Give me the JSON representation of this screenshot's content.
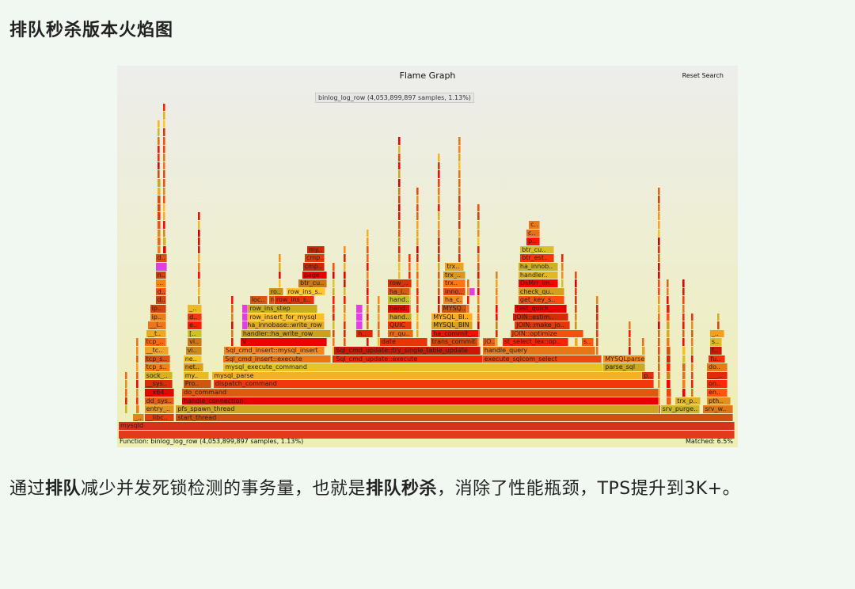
{
  "heading": "排队秒杀版本火焰图",
  "flamegraph": {
    "title": "Flame Graph",
    "reset_search": "Reset Search",
    "function_status": "Function: binlog_log_row (4,053,899,897 samples, 1.13%)",
    "tooltip": "binlog_log_row (4,053,899,897 samples, 1.13%)",
    "matched": "Matched: 6.5%",
    "highlight_color": "#e040e0",
    "frames_note_units": "level, start % of samples, width % of samples, label",
    "frames": [
      [
        0,
        0,
        100,
        ""
      ],
      [
        1,
        0,
        100,
        "mysqld"
      ],
      [
        2,
        2.3,
        1.8,
        "_.."
      ],
      [
        2,
        4.2,
        4.8,
        "__libc.."
      ],
      [
        2,
        9.3,
        90.5,
        "start_thread"
      ],
      [
        3,
        4.2,
        4.8,
        "entry_.."
      ],
      [
        3,
        9.3,
        78.4,
        "pfs_spawn_thread"
      ],
      [
        3,
        88.0,
        6.4,
        "srv_purge.."
      ],
      [
        3,
        94.9,
        4.8,
        "srv_w.."
      ],
      [
        4,
        4.2,
        4.8,
        "dd_sys.."
      ],
      [
        4,
        10.3,
        77.4,
        "handle_connection"
      ],
      [
        4,
        90.4,
        4.1,
        "trx_p.."
      ],
      [
        4,
        95.5,
        3.8,
        "pth.."
      ],
      [
        5,
        4.2,
        4.8,
        "__x64.."
      ],
      [
        5,
        10.3,
        77.4,
        "do_command"
      ],
      [
        5,
        95.5,
        3.3,
        "en.."
      ],
      [
        6,
        4.2,
        4.5,
        "__sys.."
      ],
      [
        6,
        10.5,
        4.6,
        "Pro.."
      ],
      [
        6,
        15.4,
        71.5,
        "dispatch_command"
      ],
      [
        6,
        95.5,
        3.3,
        "on.."
      ],
      [
        7,
        4.2,
        4.5,
        "sock_.."
      ],
      [
        7,
        10.5,
        4.2,
        "my.."
      ],
      [
        7,
        15.2,
        69.7,
        "mysql_parse"
      ],
      [
        7,
        85.0,
        1.9,
        "p.."
      ],
      [
        7,
        95.5,
        3.3,
        "___.."
      ],
      [
        8,
        4.2,
        4.1,
        "tcp_s.."
      ],
      [
        8,
        10.5,
        3.3,
        "net.."
      ],
      [
        8,
        17.0,
        61.7,
        "mysql_execute_command"
      ],
      [
        8,
        78.7,
        6.8,
        "parse_sql"
      ],
      [
        8,
        95.5,
        3.3,
        "do.."
      ],
      [
        9,
        4.2,
        4.1,
        "tcp_s.."
      ],
      [
        9,
        10.5,
        3.0,
        "ne.."
      ],
      [
        9,
        17.0,
        17.5,
        "Sql_cmd_insert::execute"
      ],
      [
        9,
        35.0,
        24.2,
        "Sql_cmd_update::execute"
      ],
      [
        9,
        59.1,
        19.3,
        "execute_sqlcom_select"
      ],
      [
        9,
        78.7,
        6.8,
        "MYSQLparse"
      ],
      [
        9,
        95.8,
        2.6,
        "fu.."
      ],
      [
        10,
        4.2,
        3.9,
        "__tc.."
      ],
      [
        10,
        10.9,
        2.6,
        "vi.."
      ],
      [
        10,
        17.1,
        16.3,
        "Sql_cmd_insert::mysql_insert"
      ],
      [
        10,
        35.0,
        23.8,
        "Sql_cmd_update::try_single_table_update"
      ],
      [
        10,
        59.1,
        18.3,
        "handle_query"
      ],
      [
        10,
        96.0,
        1.9,
        "f.."
      ],
      [
        11,
        4.2,
        3.5,
        "tcp_.."
      ],
      [
        11,
        11.2,
        2.3,
        "vi.."
      ],
      [
        11,
        19.8,
        14.0,
        "V"
      ],
      [
        11,
        42.4,
        7.7,
        "date"
      ],
      [
        11,
        50.6,
        7.8,
        "trans_commit"
      ],
      [
        11,
        59.1,
        2.1,
        "JO.."
      ],
      [
        11,
        62.3,
        10.7,
        "st_select_lex::op.."
      ],
      [
        11,
        75.2,
        1.9,
        "s.."
      ],
      [
        11,
        96.0,
        1.9,
        "s.."
      ],
      [
        12,
        4.5,
        3.2,
        "__t.."
      ],
      [
        12,
        11.2,
        2.3,
        "[.."
      ],
      [
        12,
        19.9,
        14.5,
        "handler::ha_write_row"
      ],
      [
        12,
        38.6,
        2.6,
        "h.."
      ],
      [
        12,
        43.7,
        4.1,
        "rr_qu.."
      ],
      [
        12,
        50.8,
        7.7,
        "ha_commit_.."
      ],
      [
        12,
        63.6,
        11.9,
        "JOIN::optimize"
      ],
      [
        12,
        96.0,
        2.3,
        "_.."
      ],
      [
        13,
        4.8,
        2.9,
        "__i.."
      ],
      [
        13,
        11.2,
        2.3,
        "e.."
      ],
      [
        13,
        20.6,
        12.8,
        "ha_innobase::write_row"
      ],
      [
        13,
        43.7,
        3.9,
        "QUIC"
      ],
      [
        13,
        50.8,
        6.7,
        "MYSQL_BIN"
      ],
      [
        13,
        64.3,
        9.0,
        "JOIN::make_jo.."
      ],
      [
        14,
        5.1,
        2.6,
        "ip.."
      ],
      [
        14,
        11.2,
        2.3,
        "d.."
      ],
      [
        14,
        21.0,
        12.4,
        "row_insert_for_mysql"
      ],
      [
        14,
        43.7,
        3.9,
        "hand.."
      ],
      [
        14,
        50.8,
        6.7,
        "MYSQL_BI.."
      ],
      [
        14,
        64.0,
        9.0,
        "JOIN::estim.."
      ],
      [
        15,
        5.1,
        2.6,
        "ip.."
      ],
      [
        15,
        11.2,
        2.3,
        "_.."
      ],
      [
        15,
        21.0,
        11.2,
        "row_ins_step"
      ],
      [
        15,
        43.7,
        3.6,
        "hand.."
      ],
      [
        15,
        52.4,
        4.1,
        "MYSQ.."
      ],
      [
        15,
        64.3,
        8.4,
        "test_quick_.."
      ],
      [
        16,
        21.3,
        2.9,
        "loc.."
      ],
      [
        16,
        24.4,
        2.3,
        "ro.."
      ],
      [
        16,
        25.3,
        6.5,
        "row_ins_s.."
      ],
      [
        16,
        43.7,
        3.6,
        "hand.."
      ],
      [
        16,
        52.7,
        3.2,
        "ha_c.."
      ],
      [
        16,
        64.9,
        7.5,
        "get_key_s.."
      ],
      [
        16,
        6.0,
        1.7,
        "d.."
      ],
      [
        17,
        24.4,
        2.3,
        "ro.."
      ],
      [
        17,
        27.2,
        6.4,
        "row_ins_s.."
      ],
      [
        17,
        43.7,
        3.6,
        "ha_i.."
      ],
      [
        17,
        52.7,
        3.6,
        "inno.."
      ],
      [
        17,
        64.9,
        7.5,
        "check_qu.."
      ],
      [
        17,
        6.0,
        1.7,
        "d.."
      ],
      [
        18,
        29.2,
        4.6,
        "btr_cu.."
      ],
      [
        18,
        43.7,
        3.9,
        "row_.."
      ],
      [
        18,
        52.7,
        3.6,
        "trx.."
      ],
      [
        18,
        64.9,
        6.4,
        "DsMrr_im.."
      ],
      [
        18,
        6.0,
        1.7,
        "..."
      ],
      [
        19,
        29.8,
        4.0,
        "page.."
      ],
      [
        19,
        52.7,
        3.6,
        "trx_.."
      ],
      [
        19,
        64.9,
        6.4,
        "handler.."
      ],
      [
        19,
        6.0,
        1.7,
        "n.."
      ],
      [
        20,
        29.9,
        3.5,
        "cmp.."
      ],
      [
        20,
        53.0,
        3.0,
        "trx.."
      ],
      [
        20,
        64.9,
        6.4,
        "ha_innob.."
      ],
      [
        20,
        6.0,
        1.9,
        "p.."
      ],
      [
        21,
        30.2,
        3.2,
        "cmp.."
      ],
      [
        21,
        65.2,
        5.5,
        "btr_est.."
      ],
      [
        21,
        6.0,
        1.9,
        "d.."
      ],
      [
        22,
        30.6,
        2.8,
        "my.."
      ],
      [
        22,
        65.2,
        5.5,
        "btr_cu.."
      ],
      [
        23,
        66.2,
        2.2,
        "p.."
      ],
      [
        24,
        66.2,
        2.2,
        "c.."
      ],
      [
        25,
        66.6,
        1.8,
        "c.."
      ]
    ],
    "highlighted": [
      [
        13,
        20.0,
        1.0
      ],
      [
        14,
        20.0,
        1.0
      ],
      [
        15,
        20.0,
        1.0
      ],
      [
        13,
        38.6,
        1.0
      ],
      [
        14,
        38.6,
        1.0
      ],
      [
        15,
        38.6,
        1.0
      ],
      [
        20,
        6.0,
        1.9
      ],
      [
        17,
        57.0,
        0.8
      ]
    ]
  },
  "paragraph": {
    "t1": "通过",
    "b1": "排队",
    "t2": "减少并发死锁检测的事务量，也就是",
    "b2": "排队秒杀",
    "t3": "，消除了性能瓶颈，TPS提升到3K+。"
  }
}
